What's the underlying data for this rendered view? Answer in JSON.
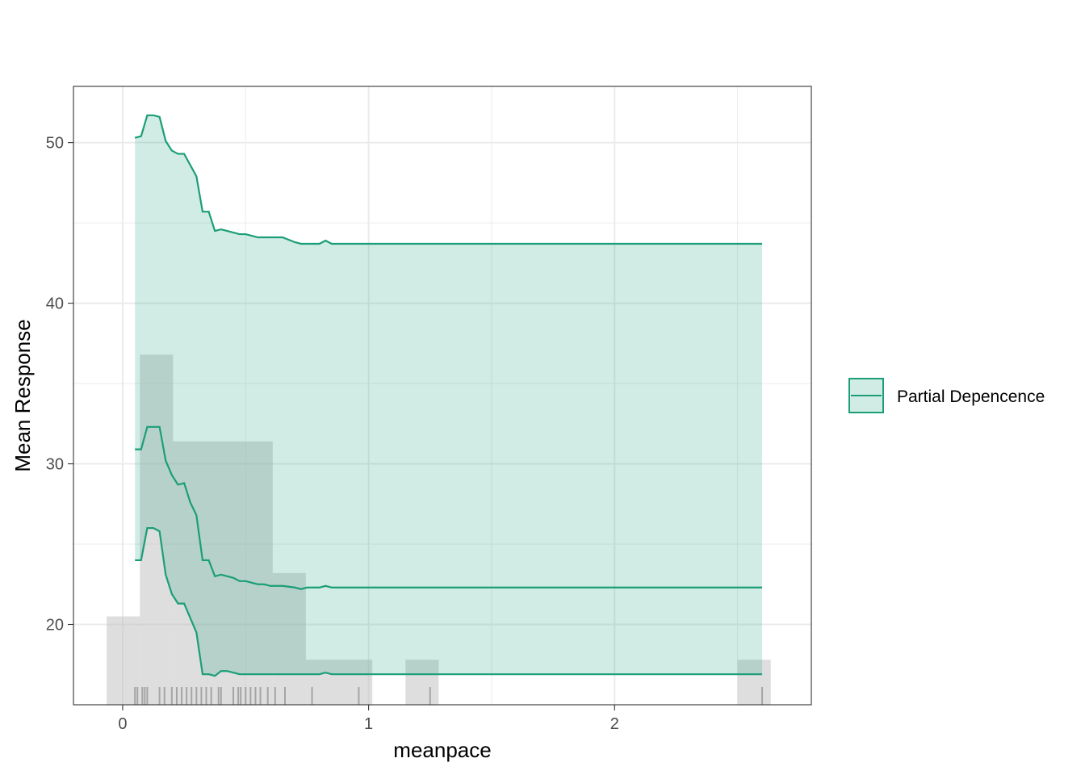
{
  "chart_data": {
    "type": "line",
    "title": "",
    "xlabel": "meanpace",
    "ylabel": "Mean Response",
    "xlim": [
      -0.2,
      2.8
    ],
    "ylim": [
      15,
      53.5
    ],
    "x_ticks": [
      0,
      1,
      2
    ],
    "x_tick_labels": [
      "0",
      "1",
      "2"
    ],
    "y_ticks": [
      20,
      30,
      40,
      50
    ],
    "y_tick_labels": [
      "20",
      "30",
      "40",
      "50"
    ],
    "grid": true,
    "legend": {
      "position": "right",
      "entries": [
        "Partial Depencence"
      ]
    },
    "colors": {
      "line": "#1b9e77",
      "band": "#1b9e77",
      "histogram": "#bdbdbd",
      "rug": "#7f7f7f"
    },
    "x": [
      0.05,
      0.075,
      0.1,
      0.125,
      0.15,
      0.175,
      0.2,
      0.225,
      0.25,
      0.275,
      0.3,
      0.325,
      0.35,
      0.375,
      0.4,
      0.425,
      0.45,
      0.475,
      0.5,
      0.525,
      0.55,
      0.575,
      0.6,
      0.65,
      0.7,
      0.725,
      0.75,
      0.8,
      0.825,
      0.85,
      0.9,
      1.0,
      1.5,
      2.0,
      2.6
    ],
    "series": [
      {
        "name": "Partial Depencence",
        "values": [
          30.9,
          30.9,
          32.3,
          32.3,
          32.3,
          30.2,
          29.3,
          28.7,
          28.8,
          27.6,
          26.8,
          24.0,
          24.0,
          23.0,
          23.1,
          23.0,
          22.9,
          22.7,
          22.7,
          22.6,
          22.5,
          22.5,
          22.4,
          22.4,
          22.3,
          22.2,
          22.3,
          22.3,
          22.4,
          22.3,
          22.3,
          22.3,
          22.3,
          22.3,
          22.3
        ]
      },
      {
        "name": "upper",
        "values": [
          50.3,
          50.4,
          51.7,
          51.7,
          51.6,
          50.1,
          49.5,
          49.3,
          49.3,
          48.6,
          47.9,
          45.7,
          45.7,
          44.5,
          44.6,
          44.5,
          44.4,
          44.3,
          44.3,
          44.2,
          44.1,
          44.1,
          44.1,
          44.1,
          43.8,
          43.7,
          43.7,
          43.7,
          43.9,
          43.7,
          43.7,
          43.7,
          43.7,
          43.7,
          43.7
        ]
      },
      {
        "name": "lower",
        "values": [
          24.0,
          24.0,
          26.0,
          26.0,
          25.8,
          23.1,
          21.9,
          21.3,
          21.3,
          20.4,
          19.5,
          16.9,
          16.9,
          16.8,
          17.1,
          17.1,
          17.0,
          16.9,
          16.9,
          16.9,
          16.9,
          16.9,
          16.9,
          16.9,
          16.9,
          16.9,
          16.9,
          16.9,
          17.0,
          16.9,
          16.9,
          16.9,
          16.9,
          16.9,
          16.9
        ]
      }
    ],
    "histogram": [
      {
        "x0": -0.065,
        "x1": 0.07,
        "top": 20.5
      },
      {
        "x0": 0.07,
        "x1": 0.205,
        "top": 36.8
      },
      {
        "x0": 0.205,
        "x1": 0.61,
        "top": 31.4
      },
      {
        "x0": 0.61,
        "x1": 0.745,
        "top": 23.2
      },
      {
        "x0": 0.745,
        "x1": 1.015,
        "top": 17.8
      },
      {
        "x0": 1.15,
        "x1": 1.285,
        "top": 17.8
      },
      {
        "x0": 2.5,
        "x1": 2.635,
        "top": 17.8
      }
    ],
    "rug": [
      0.05,
      0.06,
      0.08,
      0.09,
      0.1,
      0.15,
      0.17,
      0.2,
      0.22,
      0.24,
      0.26,
      0.28,
      0.3,
      0.32,
      0.34,
      0.36,
      0.39,
      0.4,
      0.45,
      0.47,
      0.48,
      0.5,
      0.52,
      0.54,
      0.56,
      0.59,
      0.62,
      0.66,
      0.77,
      0.96,
      1.25,
      2.6
    ]
  }
}
